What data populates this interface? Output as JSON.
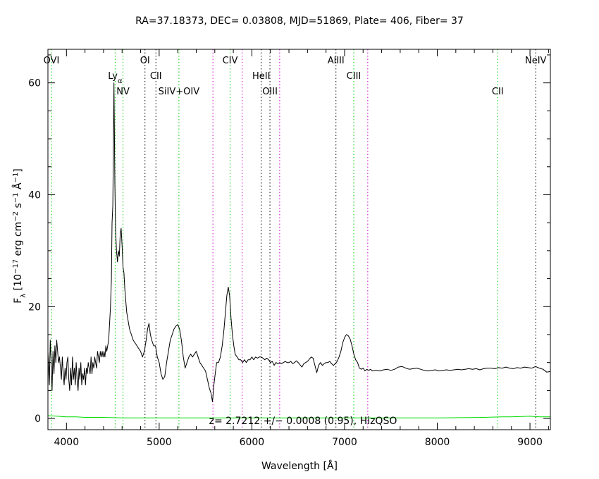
{
  "chart_data": {
    "type": "line",
    "title": "RA=37.18373, DEC= 0.03808, MJD=51869, Plate= 406, Fiber= 37",
    "xlabel": "Wavelength [Å]",
    "ylabel_parts": {
      "f": "F",
      "lambda": "λ",
      "open": " [10",
      "exp17": "−17",
      "erg": " erg cm",
      "exp2": "−2",
      "s": " s",
      "exp1a": "−1",
      "ang": " Å",
      "exp1b": "−1",
      "close": "]"
    },
    "xlim": [
      3800,
      9220
    ],
    "ylim": [
      -2,
      66
    ],
    "x_ticks": [
      4000,
      5000,
      6000,
      7000,
      8000,
      9000
    ],
    "y_ticks": [
      0,
      20,
      40,
      60
    ],
    "grid": false,
    "annotation": "z= 2.7212 +/− 0.0008 (0.95), HizQSO",
    "series": [
      {
        "color": "#000000",
        "points": [
          [
            3800,
            12
          ],
          [
            3815,
            6
          ],
          [
            3825,
            14
          ],
          [
            3835,
            10
          ],
          [
            3845,
            5
          ],
          [
            3855,
            12
          ],
          [
            3865,
            8
          ],
          [
            3875,
            13
          ],
          [
            3885,
            10
          ],
          [
            3895,
            14
          ],
          [
            3905,
            12
          ],
          [
            3915,
            10
          ],
          [
            3925,
            11
          ],
          [
            3935,
            9
          ],
          [
            3945,
            7
          ],
          [
            3955,
            11
          ],
          [
            3965,
            8
          ],
          [
            3975,
            6
          ],
          [
            3985,
            9
          ],
          [
            3995,
            7
          ],
          [
            4005,
            10
          ],
          [
            4015,
            11
          ],
          [
            4025,
            7
          ],
          [
            4035,
            5
          ],
          [
            4045,
            9
          ],
          [
            4055,
            6
          ],
          [
            4065,
            11
          ],
          [
            4075,
            7
          ],
          [
            4085,
            9
          ],
          [
            4095,
            6
          ],
          [
            4105,
            10
          ],
          [
            4115,
            7
          ],
          [
            4125,
            5
          ],
          [
            4135,
            9
          ],
          [
            4145,
            7
          ],
          [
            4155,
            10
          ],
          [
            4165,
            6
          ],
          [
            4175,
            8
          ],
          [
            4185,
            7
          ],
          [
            4195,
            9
          ],
          [
            4205,
            6
          ],
          [
            4215,
            9
          ],
          [
            4225,
            8
          ],
          [
            4235,
            10
          ],
          [
            4245,
            9
          ],
          [
            4255,
            8
          ],
          [
            4265,
            11
          ],
          [
            4275,
            8
          ],
          [
            4285,
            10
          ],
          [
            4295,
            9
          ],
          [
            4305,
            11
          ],
          [
            4315,
            10
          ],
          [
            4325,
            9
          ],
          [
            4335,
            12
          ],
          [
            4345,
            11
          ],
          [
            4355,
            10
          ],
          [
            4365,
            12
          ],
          [
            4375,
            11
          ],
          [
            4385,
            12
          ],
          [
            4395,
            11
          ],
          [
            4405,
            12
          ],
          [
            4415,
            11
          ],
          [
            4425,
            13
          ],
          [
            4435,
            12
          ],
          [
            4445,
            13
          ],
          [
            4455,
            14
          ],
          [
            4465,
            17
          ],
          [
            4475,
            20
          ],
          [
            4485,
            25
          ],
          [
            4492,
            35
          ],
          [
            4500,
            38
          ],
          [
            4507,
            50
          ],
          [
            4512,
            60
          ],
          [
            4517,
            52
          ],
          [
            4522,
            42
          ],
          [
            4530,
            34
          ],
          [
            4540,
            30
          ],
          [
            4550,
            28
          ],
          [
            4560,
            30
          ],
          [
            4570,
            29
          ],
          [
            4580,
            33
          ],
          [
            4590,
            34
          ],
          [
            4600,
            31
          ],
          [
            4610,
            27
          ],
          [
            4620,
            26
          ],
          [
            4630,
            23
          ],
          [
            4640,
            21
          ],
          [
            4650,
            19
          ],
          [
            4660,
            18
          ],
          [
            4680,
            16
          ],
          [
            4700,
            15
          ],
          [
            4720,
            14
          ],
          [
            4740,
            13.5
          ],
          [
            4760,
            13
          ],
          [
            4780,
            12.5
          ],
          [
            4800,
            12
          ],
          [
            4820,
            11
          ],
          [
            4840,
            12
          ],
          [
            4860,
            14
          ],
          [
            4875,
            16
          ],
          [
            4890,
            17
          ],
          [
            4905,
            15
          ],
          [
            4920,
            14
          ],
          [
            4940,
            13
          ],
          [
            4960,
            13
          ],
          [
            4980,
            11
          ],
          [
            5000,
            10
          ],
          [
            5020,
            8
          ],
          [
            5040,
            7
          ],
          [
            5060,
            7.5
          ],
          [
            5080,
            10
          ],
          [
            5100,
            12
          ],
          [
            5120,
            14
          ],
          [
            5140,
            15
          ],
          [
            5160,
            16
          ],
          [
            5180,
            16.5
          ],
          [
            5200,
            16.8
          ],
          [
            5220,
            16
          ],
          [
            5240,
            14
          ],
          [
            5260,
            11
          ],
          [
            5280,
            9
          ],
          [
            5300,
            10
          ],
          [
            5320,
            11
          ],
          [
            5340,
            11.5
          ],
          [
            5360,
            11
          ],
          [
            5380,
            11.5
          ],
          [
            5400,
            12
          ],
          [
            5420,
            11
          ],
          [
            5440,
            10
          ],
          [
            5460,
            9.5
          ],
          [
            5480,
            9
          ],
          [
            5500,
            8.5
          ],
          [
            5520,
            7
          ],
          [
            5540,
            5.5
          ],
          [
            5560,
            4.5
          ],
          [
            5575,
            3
          ],
          [
            5590,
            6
          ],
          [
            5605,
            8
          ],
          [
            5620,
            10
          ],
          [
            5640,
            10
          ],
          [
            5660,
            11
          ],
          [
            5680,
            13
          ],
          [
            5700,
            16
          ],
          [
            5715,
            19
          ],
          [
            5730,
            22
          ],
          [
            5745,
            23.5
          ],
          [
            5760,
            22
          ],
          [
            5775,
            18
          ],
          [
            5790,
            15
          ],
          [
            5805,
            13
          ],
          [
            5820,
            11.5
          ],
          [
            5840,
            11
          ],
          [
            5860,
            10.5
          ],
          [
            5880,
            10.5
          ],
          [
            5900,
            10
          ],
          [
            5920,
            10.5
          ],
          [
            5940,
            10
          ],
          [
            5960,
            10.5
          ],
          [
            5980,
            10.5
          ],
          [
            6000,
            11
          ],
          [
            6020,
            10.5
          ],
          [
            6040,
            11
          ],
          [
            6060,
            10.8
          ],
          [
            6080,
            11
          ],
          [
            6100,
            11
          ],
          [
            6120,
            10.8
          ],
          [
            6140,
            10.5
          ],
          [
            6160,
            10.8
          ],
          [
            6180,
            10.5
          ],
          [
            6200,
            10
          ],
          [
            6220,
            10.2
          ],
          [
            6240,
            9.5
          ],
          [
            6260,
            10
          ],
          [
            6280,
            9.8
          ],
          [
            6300,
            10
          ],
          [
            6320,
            9.8
          ],
          [
            6340,
            10
          ],
          [
            6360,
            10.2
          ],
          [
            6380,
            10
          ],
          [
            6400,
            10
          ],
          [
            6420,
            10.2
          ],
          [
            6440,
            9.8
          ],
          [
            6460,
            10
          ],
          [
            6480,
            10.3
          ],
          [
            6500,
            10
          ],
          [
            6520,
            9.6
          ],
          [
            6540,
            9.2
          ],
          [
            6560,
            9.8
          ],
          [
            6580,
            10
          ],
          [
            6600,
            10.2
          ],
          [
            6620,
            10.6
          ],
          [
            6640,
            11
          ],
          [
            6660,
            10.8
          ],
          [
            6680,
            9.5
          ],
          [
            6700,
            8.2
          ],
          [
            6720,
            9.5
          ],
          [
            6740,
            10
          ],
          [
            6760,
            9.5
          ],
          [
            6780,
            9.8
          ],
          [
            6800,
            10
          ],
          [
            6820,
            10
          ],
          [
            6840,
            10.2
          ],
          [
            6860,
            9.8
          ],
          [
            6880,
            9.5
          ],
          [
            6900,
            9.8
          ],
          [
            6920,
            10.2
          ],
          [
            6940,
            11
          ],
          [
            6960,
            12
          ],
          [
            6980,
            13.5
          ],
          [
            7000,
            14.5
          ],
          [
            7020,
            15
          ],
          [
            7040,
            14.8
          ],
          [
            7060,
            14.2
          ],
          [
            7080,
            13
          ],
          [
            7100,
            11.5
          ],
          [
            7120,
            10.5
          ],
          [
            7140,
            10
          ],
          [
            7160,
            9
          ],
          [
            7180,
            8.8
          ],
          [
            7200,
            9
          ],
          [
            7220,
            8.5
          ],
          [
            7240,
            8.8
          ],
          [
            7260,
            8.6
          ],
          [
            7280,
            8.8
          ],
          [
            7300,
            8.5
          ],
          [
            7340,
            8.6
          ],
          [
            7380,
            8.5
          ],
          [
            7420,
            8.7
          ],
          [
            7460,
            8.8
          ],
          [
            7500,
            8.6
          ],
          [
            7540,
            8.8
          ],
          [
            7580,
            9.2
          ],
          [
            7620,
            9.3
          ],
          [
            7660,
            9
          ],
          [
            7700,
            8.8
          ],
          [
            7740,
            8.9
          ],
          [
            7780,
            9
          ],
          [
            7820,
            8.8
          ],
          [
            7860,
            8.6
          ],
          [
            7900,
            8.5
          ],
          [
            7940,
            8.6
          ],
          [
            7980,
            8.7
          ],
          [
            8020,
            8.5
          ],
          [
            8060,
            8.6
          ],
          [
            8100,
            8.7
          ],
          [
            8140,
            8.6
          ],
          [
            8180,
            8.7
          ],
          [
            8220,
            8.8
          ],
          [
            8260,
            8.7
          ],
          [
            8300,
            8.8
          ],
          [
            8340,
            8.9
          ],
          [
            8380,
            8.8
          ],
          [
            8420,
            8.9
          ],
          [
            8460,
            8.7
          ],
          [
            8500,
            8.9
          ],
          [
            8540,
            9
          ],
          [
            8580,
            9
          ],
          [
            8620,
            8.9
          ],
          [
            8660,
            9.1
          ],
          [
            8700,
            9
          ],
          [
            8740,
            9.2
          ],
          [
            8780,
            9
          ],
          [
            8820,
            8.9
          ],
          [
            8860,
            9.1
          ],
          [
            8900,
            9
          ],
          [
            8940,
            9.2
          ],
          [
            8980,
            9.1
          ],
          [
            9020,
            9
          ],
          [
            9060,
            9.3
          ],
          [
            9100,
            9
          ],
          [
            9140,
            8.8
          ],
          [
            9180,
            8.3
          ],
          [
            9220,
            8.4
          ]
        ]
      },
      {
        "color": "#00dd00",
        "points": [
          [
            3800,
            0.5
          ],
          [
            3900,
            0.4
          ],
          [
            4000,
            0.3
          ],
          [
            4100,
            0.3
          ],
          [
            4200,
            0.2
          ],
          [
            4400,
            0.2
          ],
          [
            4600,
            0.1
          ],
          [
            5000,
            0.1
          ],
          [
            5500,
            0.1
          ],
          [
            6000,
            0.1
          ],
          [
            6500,
            0.1
          ],
          [
            7000,
            0.1
          ],
          [
            7500,
            0.1
          ],
          [
            8000,
            0.1
          ],
          [
            8500,
            0.2
          ],
          [
            8700,
            0.3
          ],
          [
            8800,
            0.3
          ],
          [
            9000,
            0.4
          ],
          [
            9100,
            0.3
          ],
          [
            9220,
            0.3
          ]
        ]
      }
    ],
    "lines": [
      {
        "label": "OVI",
        "x": 3838,
        "color": "#00cc00",
        "row": 0
      },
      {
        "label": "Ly",
        "sub": "α",
        "x": 4525,
        "color": "#00cc00",
        "row": 1
      },
      {
        "label": "NV",
        "x": 4610,
        "color": "#00cc00",
        "row": 2
      },
      {
        "label": "OI",
        "x": 4847,
        "color": "#000000",
        "row": 0
      },
      {
        "label": "CII",
        "x": 4965,
        "color": "#000000",
        "row": 1
      },
      {
        "label": "SiIV+OIV",
        "x": 5213,
        "color": "#00cc00",
        "row": 2
      },
      {
        "label": "",
        "x": 5580,
        "color": "#cc00cc",
        "row": -1
      },
      {
        "label": "CIV",
        "x": 5765,
        "color": "#00cc00",
        "row": 0
      },
      {
        "label": "",
        "x": 5895,
        "color": "#cc00cc",
        "row": -1
      },
      {
        "label": "HeII",
        "x": 6101,
        "color": "#000000",
        "row": 1
      },
      {
        "label": "OIII",
        "x": 6195,
        "color": "#000000",
        "row": 2
      },
      {
        "label": "",
        "x": 6300,
        "color": "#cc00cc",
        "row": -1
      },
      {
        "label": "AlIII",
        "x": 6907,
        "color": "#000000",
        "row": 0
      },
      {
        "label": "CIII",
        "x": 7099,
        "color": "#00cc00",
        "row": 1
      },
      {
        "label": "",
        "x": 7250,
        "color": "#cc00cc",
        "row": -1
      },
      {
        "label": "CII",
        "x": 8652,
        "color": "#00cc00",
        "row": 2
      },
      {
        "label": "NeIV",
        "x": 9062,
        "color": "#000000",
        "row": 0
      }
    ]
  }
}
